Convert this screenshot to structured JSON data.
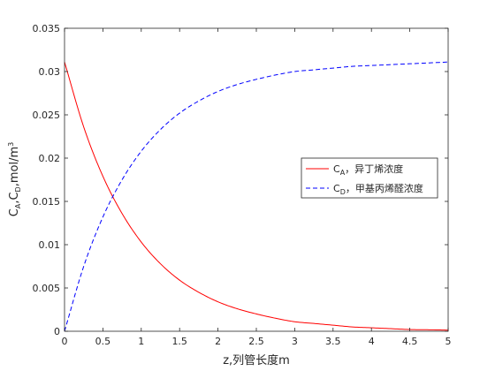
{
  "chart_data": {
    "type": "line",
    "title": "",
    "xlabel": "z,列管长度m",
    "ylabel_parts": [
      "C",
      "A",
      ",C",
      "D",
      ",mol/m",
      "3"
    ],
    "xlim": [
      0,
      5
    ],
    "ylim": [
      0,
      0.035
    ],
    "xticks": [
      0,
      0.5,
      1,
      1.5,
      2,
      2.5,
      3,
      3.5,
      4,
      4.5,
      5
    ],
    "xtick_labels": [
      "0",
      "0.5",
      "1",
      "1.5",
      "2",
      "2.5",
      "3",
      "3.5",
      "4",
      "4.5",
      "5"
    ],
    "yticks": [
      0,
      0.005,
      0.01,
      0.015,
      0.02,
      0.025,
      0.03,
      0.035
    ],
    "ytick_labels": [
      "0",
      "0.005",
      "0.01",
      "0.015",
      "0.02",
      "0.025",
      "0.03",
      "0.035"
    ],
    "grid": false,
    "box": true,
    "legend_position": "right",
    "x": [
      0,
      0.25,
      0.5,
      0.75,
      1,
      1.25,
      1.5,
      1.75,
      2,
      2.25,
      2.5,
      2.75,
      3,
      3.25,
      3.5,
      3.75,
      4,
      4.25,
      4.5,
      4.75,
      5
    ],
    "series": [
      {
        "name_main": "C",
        "name_sub": "A",
        "name_suffix": "，异丁烯浓度",
        "color": "#ff0000",
        "dash": "solid",
        "values": [
          0.0311,
          0.0236,
          0.0179,
          0.0136,
          0.0103,
          0.0078,
          0.0059,
          0.0045,
          0.0034,
          0.0026,
          0.002,
          0.0015,
          0.0011,
          0.0009,
          0.0007,
          0.0005,
          0.0004,
          0.0003,
          0.0002,
          0.00017,
          0.00013
        ]
      },
      {
        "name_main": "C",
        "name_sub": "D",
        "name_suffix": "，甲基丙烯醛浓度",
        "color": "#0000ff",
        "dash": "dashed",
        "values": [
          0,
          0.0075,
          0.0132,
          0.0175,
          0.0208,
          0.0233,
          0.0252,
          0.0266,
          0.0277,
          0.0285,
          0.0291,
          0.0296,
          0.03,
          0.0302,
          0.0304,
          0.0306,
          0.0307,
          0.0308,
          0.0309,
          0.031,
          0.0311
        ]
      }
    ]
  }
}
